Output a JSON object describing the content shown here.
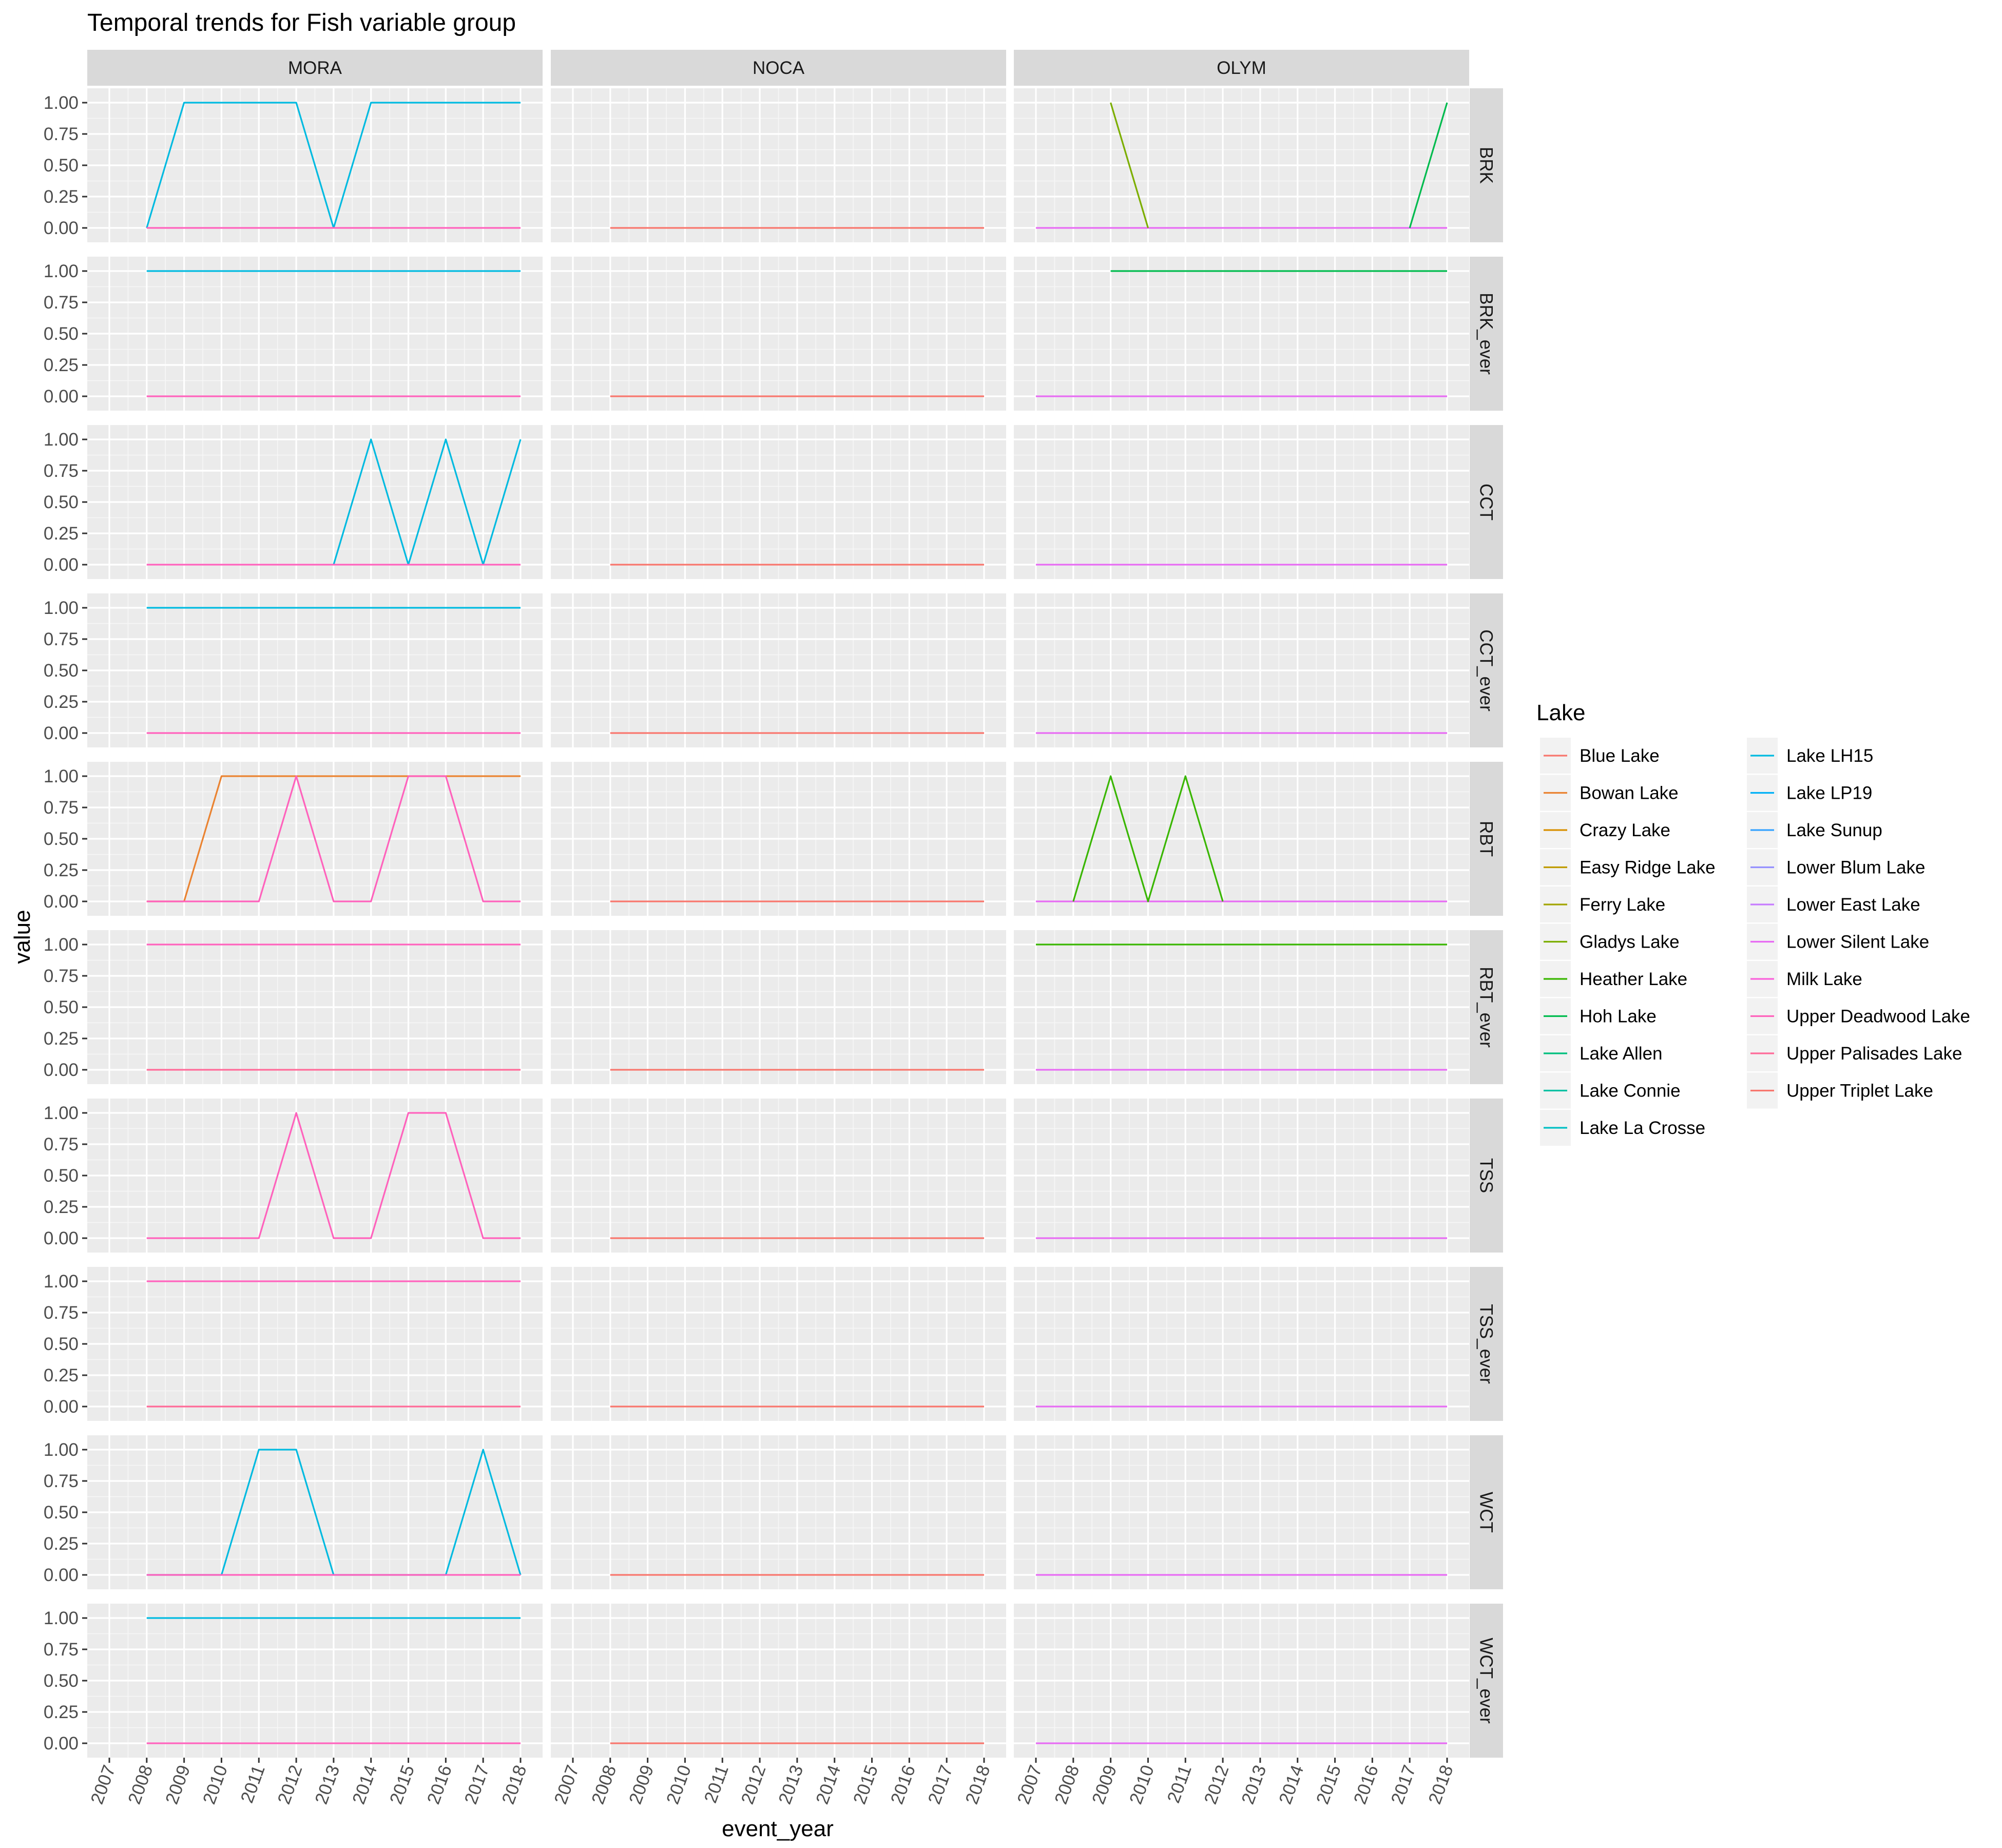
{
  "chart_data": {
    "type": "line",
    "title": "Temporal trends for Fish variable group",
    "xlabel": "event_year",
    "ylabel": "value",
    "x_ticks": [
      "2007",
      "2008",
      "2009",
      "2010",
      "2011",
      "2012",
      "2013",
      "2014",
      "2015",
      "2016",
      "2017",
      "2018"
    ],
    "y_ticks": [
      "0.00",
      "0.25",
      "0.50",
      "0.75",
      "1.00"
    ],
    "xlim": [
      2007,
      2018
    ],
    "ylim": [
      0,
      1
    ],
    "grid": true,
    "columns": [
      "MORA",
      "NOCA",
      "OLYM"
    ],
    "rows": [
      "BRK",
      "BRK_ever",
      "CCT",
      "CCT_ever",
      "RBT",
      "RBT_ever",
      "TSS",
      "TSS_ever",
      "WCT",
      "WCT_ever"
    ],
    "legend": {
      "title": "Lake",
      "placement": "right",
      "entries": [
        {
          "name": "Blue Lake",
          "color": "#F8766D"
        },
        {
          "name": "Bowan Lake",
          "color": "#EA8331"
        },
        {
          "name": "Crazy Lake",
          "color": "#D89000"
        },
        {
          "name": "Easy Ridge Lake",
          "color": "#C09B00"
        },
        {
          "name": "Ferry Lake",
          "color": "#A3A500"
        },
        {
          "name": "Gladys Lake",
          "color": "#7CAE00"
        },
        {
          "name": "Heather Lake",
          "color": "#39B600"
        },
        {
          "name": "Hoh Lake",
          "color": "#00BB4E"
        },
        {
          "name": "Lake Allen",
          "color": "#00BF7D"
        },
        {
          "name": "Lake Connie",
          "color": "#00C1A3"
        },
        {
          "name": "Lake La Crosse",
          "color": "#00BFC4"
        },
        {
          "name": "Lake LH15",
          "color": "#00BAE0"
        },
        {
          "name": "Lake LP19",
          "color": "#00B0F6"
        },
        {
          "name": "Lake Sunup",
          "color": "#35A2FF"
        },
        {
          "name": "Lower Blum Lake",
          "color": "#9590FF"
        },
        {
          "name": "Lower East Lake",
          "color": "#C77CFF"
        },
        {
          "name": "Lower Silent Lake",
          "color": "#E76BF3"
        },
        {
          "name": "Milk Lake",
          "color": "#FA62DB"
        },
        {
          "name": "Upper Deadwood Lake",
          "color": "#FF62BC"
        },
        {
          "name": "Upper Palisades Lake",
          "color": "#FF6A98"
        },
        {
          "name": "Upper Triplet Lake",
          "color": "#F8766D"
        }
      ]
    },
    "panels": [
      {
        "column": "MORA",
        "row": "BRK",
        "series": [
          {
            "name": "Lake LH15",
            "color": "#00BAE0",
            "x": [
              2008,
              2009,
              2010,
              2011,
              2012,
              2013,
              2014,
              2015,
              2016,
              2017,
              2018
            ],
            "y": [
              0,
              1,
              1,
              1,
              1,
              0,
              1,
              1,
              1,
              1,
              1
            ]
          },
          {
            "name": "Upper Deadwood Lake",
            "color": "#FF62BC",
            "x": [
              2008,
              2018
            ],
            "y": [
              0,
              0
            ]
          }
        ]
      },
      {
        "column": "NOCA",
        "row": "BRK",
        "series": [
          {
            "name": "Upper Triplet Lake",
            "color": "#F8766D",
            "x": [
              2008,
              2018
            ],
            "y": [
              0,
              0
            ]
          }
        ]
      },
      {
        "column": "OLYM",
        "row": "BRK",
        "series": [
          {
            "name": "Lower Silent Lake",
            "color": "#E76BF3",
            "x": [
              2007,
              2018
            ],
            "y": [
              0,
              0
            ]
          },
          {
            "name": "Gladys Lake",
            "color": "#7CAE00",
            "x": [
              2009,
              2010
            ],
            "y": [
              1,
              0
            ]
          },
          {
            "name": "Hoh Lake",
            "color": "#00BB4E",
            "x": [
              2017,
              2018
            ],
            "y": [
              0,
              1
            ]
          }
        ]
      },
      {
        "column": "MORA",
        "row": "BRK_ever",
        "series": [
          {
            "name": "Lake LH15",
            "color": "#00BAE0",
            "x": [
              2008,
              2018
            ],
            "y": [
              1,
              1
            ]
          },
          {
            "name": "Upper Deadwood Lake",
            "color": "#FF62BC",
            "x": [
              2008,
              2018
            ],
            "y": [
              0,
              0
            ]
          }
        ]
      },
      {
        "column": "NOCA",
        "row": "BRK_ever",
        "series": [
          {
            "name": "Upper Triplet Lake",
            "color": "#F8766D",
            "x": [
              2008,
              2018
            ],
            "y": [
              0,
              0
            ]
          }
        ]
      },
      {
        "column": "OLYM",
        "row": "BRK_ever",
        "series": [
          {
            "name": "Hoh Lake",
            "color": "#00BB4E",
            "x": [
              2009,
              2018
            ],
            "y": [
              1,
              1
            ]
          },
          {
            "name": "Lower Silent Lake",
            "color": "#E76BF3",
            "x": [
              2007,
              2018
            ],
            "y": [
              0,
              0
            ]
          }
        ]
      },
      {
        "column": "MORA",
        "row": "CCT",
        "series": [
          {
            "name": "Lake LH15",
            "color": "#00BAE0",
            "x": [
              2013,
              2014,
              2015,
              2016,
              2017,
              2018
            ],
            "y": [
              0,
              1,
              0,
              1,
              0,
              1
            ]
          },
          {
            "name": "Upper Deadwood Lake",
            "color": "#FF62BC",
            "x": [
              2008,
              2018
            ],
            "y": [
              0,
              0
            ]
          }
        ]
      },
      {
        "column": "NOCA",
        "row": "CCT",
        "series": [
          {
            "name": "Upper Triplet Lake",
            "color": "#F8766D",
            "x": [
              2008,
              2018
            ],
            "y": [
              0,
              0
            ]
          }
        ]
      },
      {
        "column": "OLYM",
        "row": "CCT",
        "series": [
          {
            "name": "Lower Silent Lake",
            "color": "#E76BF3",
            "x": [
              2007,
              2018
            ],
            "y": [
              0,
              0
            ]
          }
        ]
      },
      {
        "column": "MORA",
        "row": "CCT_ever",
        "series": [
          {
            "name": "Lake LH15",
            "color": "#00BAE0",
            "x": [
              2008,
              2018
            ],
            "y": [
              1,
              1
            ]
          },
          {
            "name": "Upper Deadwood Lake",
            "color": "#FF62BC",
            "x": [
              2008,
              2018
            ],
            "y": [
              0,
              0
            ]
          }
        ]
      },
      {
        "column": "NOCA",
        "row": "CCT_ever",
        "series": [
          {
            "name": "Upper Triplet Lake",
            "color": "#F8766D",
            "x": [
              2008,
              2018
            ],
            "y": [
              0,
              0
            ]
          }
        ]
      },
      {
        "column": "OLYM",
        "row": "CCT_ever",
        "series": [
          {
            "name": "Lower Silent Lake",
            "color": "#E76BF3",
            "x": [
              2007,
              2018
            ],
            "y": [
              0,
              0
            ]
          }
        ]
      },
      {
        "column": "MORA",
        "row": "RBT",
        "series": [
          {
            "name": "Bowan Lake",
            "color": "#EA8331",
            "x": [
              2008,
              2009,
              2010,
              2018
            ],
            "y": [
              0,
              0,
              1,
              1
            ]
          },
          {
            "name": "Upper Deadwood Lake",
            "color": "#FF62BC",
            "x": [
              2008,
              2011,
              2012,
              2013,
              2014,
              2015,
              2016,
              2017,
              2018
            ],
            "y": [
              0,
              0,
              1,
              0,
              0,
              1,
              1,
              0,
              0
            ]
          }
        ]
      },
      {
        "column": "NOCA",
        "row": "RBT",
        "series": [
          {
            "name": "Upper Triplet Lake",
            "color": "#F8766D",
            "x": [
              2008,
              2018
            ],
            "y": [
              0,
              0
            ]
          }
        ]
      },
      {
        "column": "OLYM",
        "row": "RBT",
        "series": [
          {
            "name": "Lower Silent Lake",
            "color": "#E76BF3",
            "x": [
              2007,
              2018
            ],
            "y": [
              0,
              0
            ]
          },
          {
            "name": "Heather Lake",
            "color": "#39B600",
            "x": [
              2008,
              2009,
              2010,
              2011,
              2012
            ],
            "y": [
              0,
              1,
              0,
              1,
              0
            ]
          }
        ]
      },
      {
        "column": "MORA",
        "row": "RBT_ever",
        "series": [
          {
            "name": "Upper Deadwood Lake",
            "color": "#FF62BC",
            "x": [
              2008,
              2018
            ],
            "y": [
              1,
              1
            ]
          },
          {
            "name": "Upper Palisades Lake",
            "color": "#FF6A98",
            "x": [
              2008,
              2018
            ],
            "y": [
              0,
              0
            ]
          }
        ]
      },
      {
        "column": "NOCA",
        "row": "RBT_ever",
        "series": [
          {
            "name": "Upper Triplet Lake",
            "color": "#F8766D",
            "x": [
              2008,
              2018
            ],
            "y": [
              0,
              0
            ]
          }
        ]
      },
      {
        "column": "OLYM",
        "row": "RBT_ever",
        "series": [
          {
            "name": "Heather Lake",
            "color": "#39B600",
            "x": [
              2007,
              2018
            ],
            "y": [
              1,
              1
            ]
          },
          {
            "name": "Lower Silent Lake",
            "color": "#E76BF3",
            "x": [
              2007,
              2018
            ],
            "y": [
              0,
              0
            ]
          }
        ]
      },
      {
        "column": "MORA",
        "row": "TSS",
        "series": [
          {
            "name": "Upper Deadwood Lake",
            "color": "#FF62BC",
            "x": [
              2008,
              2011,
              2012,
              2013,
              2014,
              2015,
              2016,
              2017,
              2018
            ],
            "y": [
              0,
              0,
              1,
              0,
              0,
              1,
              1,
              0,
              0
            ]
          }
        ]
      },
      {
        "column": "NOCA",
        "row": "TSS",
        "series": [
          {
            "name": "Upper Triplet Lake",
            "color": "#F8766D",
            "x": [
              2008,
              2018
            ],
            "y": [
              0,
              0
            ]
          }
        ]
      },
      {
        "column": "OLYM",
        "row": "TSS",
        "series": [
          {
            "name": "Lower Silent Lake",
            "color": "#E76BF3",
            "x": [
              2007,
              2018
            ],
            "y": [
              0,
              0
            ]
          }
        ]
      },
      {
        "column": "MORA",
        "row": "TSS_ever",
        "series": [
          {
            "name": "Upper Deadwood Lake",
            "color": "#FF62BC",
            "x": [
              2008,
              2018
            ],
            "y": [
              1,
              1
            ]
          },
          {
            "name": "Upper Palisades Lake",
            "color": "#FF6A98",
            "x": [
              2008,
              2018
            ],
            "y": [
              0,
              0
            ]
          }
        ]
      },
      {
        "column": "NOCA",
        "row": "TSS_ever",
        "series": [
          {
            "name": "Upper Triplet Lake",
            "color": "#F8766D",
            "x": [
              2008,
              2018
            ],
            "y": [
              0,
              0
            ]
          }
        ]
      },
      {
        "column": "OLYM",
        "row": "TSS_ever",
        "series": [
          {
            "name": "Lower Silent Lake",
            "color": "#E76BF3",
            "x": [
              2007,
              2018
            ],
            "y": [
              0,
              0
            ]
          }
        ]
      },
      {
        "column": "MORA",
        "row": "WCT",
        "series": [
          {
            "name": "Lake LH15",
            "color": "#00BAE0",
            "x": [
              2008,
              2010,
              2011,
              2012,
              2013,
              2016,
              2017,
              2018
            ],
            "y": [
              0,
              0,
              1,
              1,
              0,
              0,
              1,
              0
            ]
          },
          {
            "name": "Upper Deadwood Lake",
            "color": "#FF62BC",
            "x": [
              2008,
              2018
            ],
            "y": [
              0,
              0
            ]
          }
        ]
      },
      {
        "column": "NOCA",
        "row": "WCT",
        "series": [
          {
            "name": "Upper Triplet Lake",
            "color": "#F8766D",
            "x": [
              2008,
              2018
            ],
            "y": [
              0,
              0
            ]
          }
        ]
      },
      {
        "column": "OLYM",
        "row": "WCT",
        "series": [
          {
            "name": "Lower Silent Lake",
            "color": "#E76BF3",
            "x": [
              2007,
              2018
            ],
            "y": [
              0,
              0
            ]
          }
        ]
      },
      {
        "column": "MORA",
        "row": "WCT_ever",
        "series": [
          {
            "name": "Lake LH15",
            "color": "#00BAE0",
            "x": [
              2008,
              2018
            ],
            "y": [
              1,
              1
            ]
          },
          {
            "name": "Upper Deadwood Lake",
            "color": "#FF62BC",
            "x": [
              2008,
              2018
            ],
            "y": [
              0,
              0
            ]
          }
        ]
      },
      {
        "column": "NOCA",
        "row": "WCT_ever",
        "series": [
          {
            "name": "Upper Triplet Lake",
            "color": "#F8766D",
            "x": [
              2008,
              2018
            ],
            "y": [
              0,
              0
            ]
          }
        ]
      },
      {
        "column": "OLYM",
        "row": "WCT_ever",
        "series": [
          {
            "name": "Lower Silent Lake",
            "color": "#E76BF3",
            "x": [
              2007,
              2018
            ],
            "y": [
              0,
              0
            ]
          }
        ]
      }
    ]
  }
}
